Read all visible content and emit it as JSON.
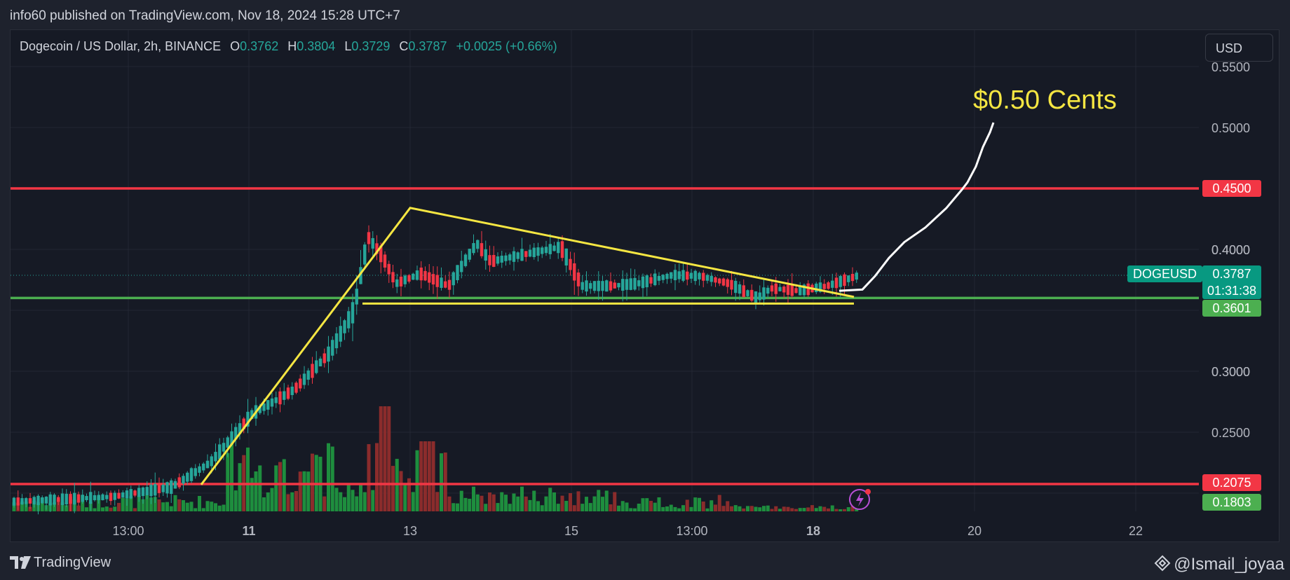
{
  "header": {
    "published_by": "info60 published on TradingView.com, Nov 18, 2024 15:28 UTC+7"
  },
  "legend": {
    "instrument": "Dogecoin / US Dollar, 2h, BINANCE",
    "o_label": "O",
    "o_value": "0.3762",
    "h_label": "H",
    "h_value": "0.3804",
    "l_label": "L",
    "l_value": "0.3729",
    "c_label": "C",
    "c_value": "0.3787",
    "change": "+0.0025 (+0.66%)"
  },
  "currency_button": "USD",
  "annotation_text": "$0.50 Cents",
  "price_tags": {
    "resistance_high": "0.4500",
    "symbol": "DOGEUSD",
    "last_price": "0.3787",
    "countdown": "01:31:38",
    "support": "0.3601",
    "resistance_low": "0.2075",
    "volume_axis": "0.1803"
  },
  "footer": {
    "brand": "TradingView",
    "handle": "@Ismail_joyaa"
  },
  "colors": {
    "up": "#26a69a",
    "down": "#f23645",
    "volume_up": "#1e8e3e",
    "volume_down": "#8b2c2c",
    "resistance_line": "#f23645",
    "support_line": "#4caf50",
    "trendline": "#f5e642",
    "projection": "#ffffff",
    "annotation": "#f5e642"
  },
  "chart_data": {
    "type": "candlestick",
    "interval": "2h",
    "y_axis_ticks": [
      "0.5500",
      "0.5000",
      "0.4000",
      "0.3000",
      "0.2500"
    ],
    "ylim": [
      0.16,
      0.56
    ],
    "x_axis_ticks": [
      "13:00",
      "11",
      "13",
      "15",
      "13:00",
      "18",
      "20",
      "22"
    ],
    "horizontal_levels": [
      {
        "price": 0.45,
        "color": "red"
      },
      {
        "price": 0.3601,
        "color": "green"
      },
      {
        "price": 0.2075,
        "color": "red"
      }
    ],
    "last_price": 0.3787,
    "ohlc_key_points": [
      {
        "label": "start",
        "price": 0.195
      },
      {
        "label": "rally_start",
        "price": 0.21
      },
      {
        "label": "peak",
        "price": 0.43
      },
      {
        "label": "consolidation_low",
        "price": 0.36
      },
      {
        "label": "current",
        "price": 0.3787
      }
    ],
    "projection_target": 0.5
  }
}
